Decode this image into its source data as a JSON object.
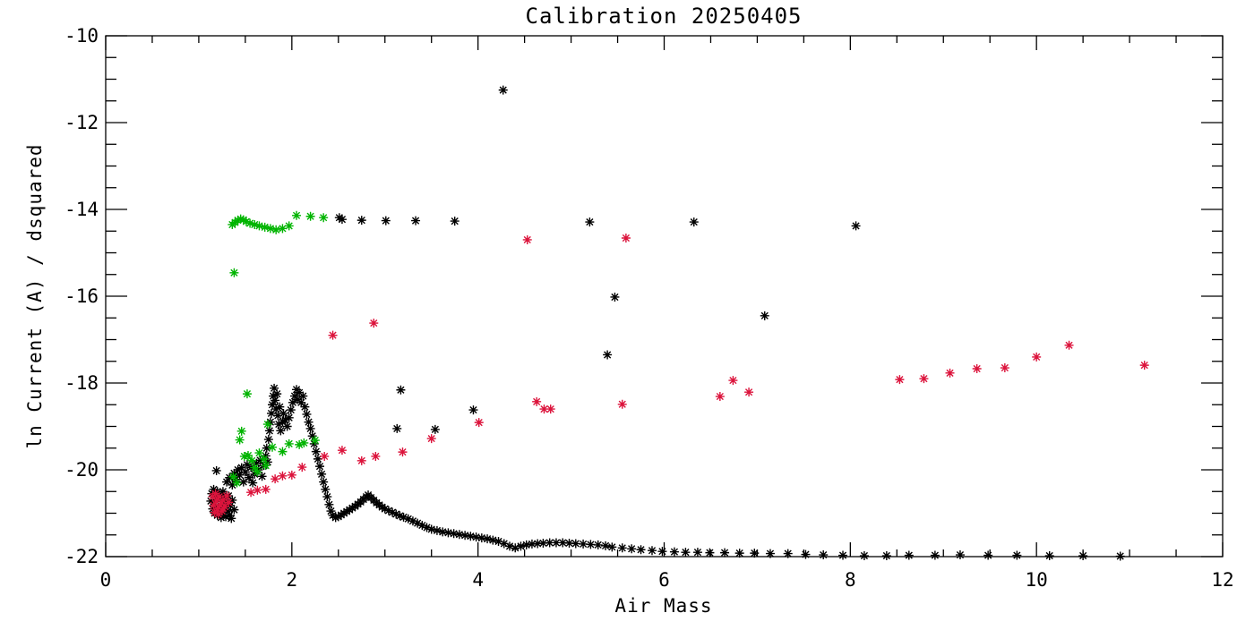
{
  "colors": {
    "background": "#ffffff",
    "axis": "#000000",
    "black_series": "#000000",
    "green_series": "#00b400",
    "red_series": "#dc143c"
  },
  "chart_data": {
    "type": "scatter",
    "title": "Calibration 20250405",
    "xlabel": "Air Mass",
    "ylabel": "ln Current (A) / dsquared",
    "xlim": [
      0,
      12
    ],
    "ylim": [
      -22,
      -10
    ],
    "x_major_ticks": [
      0,
      2,
      4,
      6,
      8,
      10,
      12
    ],
    "x_tick_labels": [
      "0",
      "2",
      "4",
      "6",
      "8",
      "10",
      "12"
    ],
    "x_minor_tick_step": 0.5,
    "y_major_ticks": [
      -22,
      -20,
      -18,
      -16,
      -14,
      -12,
      -10
    ],
    "y_tick_labels": [
      "-22",
      "-20",
      "-18",
      "-16",
      "-14",
      "-12",
      "-10"
    ],
    "y_minor_tick_step": 0.5,
    "grid": false,
    "legend": "none",
    "marker": "asterisk",
    "series": [
      {
        "name": "black-dense-trace",
        "color": "#000000",
        "points": [
          [
            1.13,
            -20.72
          ],
          [
            1.14,
            -20.55
          ],
          [
            1.15,
            -20.9
          ],
          [
            1.16,
            -20.45
          ],
          [
            1.16,
            -20.75
          ],
          [
            1.17,
            -21.0
          ],
          [
            1.18,
            -20.6
          ],
          [
            1.19,
            -20.85
          ],
          [
            1.2,
            -20.5
          ],
          [
            1.2,
            -21.05
          ],
          [
            1.21,
            -20.7
          ],
          [
            1.22,
            -20.92
          ],
          [
            1.23,
            -20.58
          ],
          [
            1.24,
            -21.1
          ],
          [
            1.25,
            -20.78
          ],
          [
            1.26,
            -20.5
          ],
          [
            1.26,
            -21.0
          ],
          [
            1.27,
            -20.65
          ],
          [
            1.28,
            -20.88
          ],
          [
            1.29,
            -21.08
          ],
          [
            1.3,
            -20.72
          ],
          [
            1.31,
            -20.95
          ],
          [
            1.32,
            -20.6
          ],
          [
            1.33,
            -21.05
          ],
          [
            1.34,
            -20.82
          ],
          [
            1.35,
            -21.12
          ],
          [
            1.36,
            -20.7
          ],
          [
            1.38,
            -20.92
          ],
          [
            1.19,
            -20.02
          ],
          [
            1.3,
            -20.28
          ],
          [
            1.33,
            -20.18
          ],
          [
            1.36,
            -20.35
          ],
          [
            1.38,
            -20.08
          ],
          [
            1.4,
            -20.22
          ],
          [
            1.42,
            -20.0
          ],
          [
            1.44,
            -20.12
          ],
          [
            1.46,
            -19.95
          ],
          [
            1.48,
            -20.28
          ],
          [
            1.5,
            -20.05
          ],
          [
            1.52,
            -19.88
          ],
          [
            1.54,
            -20.18
          ],
          [
            1.56,
            -19.95
          ],
          [
            1.58,
            -20.3
          ],
          [
            1.6,
            -20.1
          ],
          [
            1.62,
            -19.85
          ],
          [
            1.64,
            -20.0
          ],
          [
            1.66,
            -19.78
          ],
          [
            1.68,
            -20.15
          ],
          [
            1.7,
            -19.9
          ],
          [
            1.72,
            -19.68
          ],
          [
            1.74,
            -19.82
          ],
          [
            1.73,
            -19.5
          ],
          [
            1.75,
            -19.3
          ],
          [
            1.76,
            -19.1
          ],
          [
            1.77,
            -18.9
          ],
          [
            1.78,
            -18.7
          ],
          [
            1.79,
            -18.5
          ],
          [
            1.8,
            -18.3
          ],
          [
            1.81,
            -18.12
          ],
          [
            1.82,
            -18.4
          ],
          [
            1.83,
            -18.6
          ],
          [
            1.84,
            -18.25
          ],
          [
            1.85,
            -18.75
          ],
          [
            1.86,
            -18.95
          ],
          [
            1.87,
            -18.55
          ],
          [
            1.88,
            -19.1
          ],
          [
            1.9,
            -18.9
          ],
          [
            1.91,
            -18.7
          ],
          [
            1.93,
            -18.85
          ],
          [
            1.95,
            -19.0
          ],
          [
            1.97,
            -18.8
          ],
          [
            1.99,
            -18.62
          ],
          [
            2.01,
            -18.45
          ],
          [
            2.03,
            -18.3
          ],
          [
            2.05,
            -18.15
          ],
          [
            2.06,
            -18.38
          ],
          [
            2.08,
            -18.22
          ],
          [
            2.1,
            -18.45
          ],
          [
            2.12,
            -18.3
          ],
          [
            2.14,
            -18.55
          ],
          [
            2.16,
            -18.72
          ],
          [
            2.18,
            -18.9
          ],
          [
            2.2,
            -19.05
          ],
          [
            2.22,
            -19.22
          ],
          [
            2.24,
            -19.4
          ],
          [
            2.26,
            -19.58
          ],
          [
            2.28,
            -19.75
          ],
          [
            2.3,
            -19.92
          ],
          [
            2.32,
            -20.1
          ],
          [
            2.34,
            -20.28
          ],
          [
            2.36,
            -20.45
          ],
          [
            2.38,
            -20.62
          ],
          [
            2.4,
            -20.8
          ],
          [
            2.42,
            -20.95
          ],
          [
            2.44,
            -21.05
          ],
          [
            2.47,
            -21.1
          ],
          [
            2.5,
            -21.08
          ],
          [
            2.53,
            -21.04
          ],
          [
            2.56,
            -21.0
          ],
          [
            2.59,
            -20.96
          ],
          [
            2.62,
            -20.92
          ],
          [
            2.65,
            -20.88
          ],
          [
            2.68,
            -20.84
          ],
          [
            2.71,
            -20.79
          ],
          [
            2.74,
            -20.74
          ],
          [
            2.77,
            -20.68
          ],
          [
            2.8,
            -20.62
          ],
          [
            2.82,
            -20.58
          ],
          [
            2.85,
            -20.64
          ],
          [
            2.88,
            -20.7
          ],
          [
            2.91,
            -20.76
          ],
          [
            2.94,
            -20.81
          ],
          [
            2.97,
            -20.86
          ],
          [
            3.0,
            -20.9
          ],
          [
            3.04,
            -20.94
          ],
          [
            3.08,
            -20.98
          ],
          [
            3.12,
            -21.02
          ],
          [
            3.16,
            -21.06
          ],
          [
            3.2,
            -21.09
          ],
          [
            3.25,
            -21.13
          ],
          [
            3.3,
            -21.18
          ],
          [
            3.35,
            -21.23
          ],
          [
            3.4,
            -21.28
          ],
          [
            3.45,
            -21.33
          ],
          [
            3.5,
            -21.37
          ],
          [
            3.56,
            -21.4
          ],
          [
            3.62,
            -21.43
          ],
          [
            3.68,
            -21.45
          ],
          [
            3.74,
            -21.47
          ],
          [
            3.8,
            -21.49
          ],
          [
            3.86,
            -21.51
          ],
          [
            3.92,
            -21.53
          ],
          [
            3.98,
            -21.55
          ],
          [
            4.04,
            -21.57
          ],
          [
            4.1,
            -21.59
          ],
          [
            4.16,
            -21.62
          ],
          [
            4.22,
            -21.65
          ],
          [
            4.28,
            -21.7
          ],
          [
            4.34,
            -21.76
          ],
          [
            4.4,
            -21.8
          ],
          [
            4.46,
            -21.76
          ],
          [
            4.52,
            -21.73
          ],
          [
            4.58,
            -21.71
          ],
          [
            4.64,
            -21.7
          ],
          [
            4.7,
            -21.69
          ],
          [
            4.77,
            -21.68
          ],
          [
            4.84,
            -21.68
          ],
          [
            4.91,
            -21.68
          ],
          [
            4.98,
            -21.69
          ],
          [
            5.05,
            -21.7
          ],
          [
            5.13,
            -21.71
          ],
          [
            5.21,
            -21.72
          ],
          [
            5.29,
            -21.73
          ],
          [
            5.37,
            -21.75
          ],
          [
            5.44,
            -21.78
          ],
          [
            5.55,
            -21.8
          ],
          [
            5.65,
            -21.82
          ],
          [
            5.75,
            -21.84
          ],
          [
            5.87,
            -21.86
          ],
          [
            5.98,
            -21.88
          ],
          [
            6.11,
            -21.89
          ],
          [
            6.23,
            -21.9
          ],
          [
            6.36,
            -21.9
          ],
          [
            6.49,
            -21.91
          ],
          [
            6.65,
            -21.91
          ],
          [
            6.81,
            -21.92
          ],
          [
            6.97,
            -21.92
          ],
          [
            7.14,
            -21.93
          ],
          [
            7.33,
            -21.93
          ],
          [
            7.52,
            -21.95
          ],
          [
            7.71,
            -21.96
          ],
          [
            7.92,
            -21.97
          ],
          [
            8.15,
            -21.98
          ],
          [
            8.39,
            -21.98
          ],
          [
            8.63,
            -21.97
          ],
          [
            8.91,
            -21.97
          ],
          [
            9.18,
            -21.96
          ],
          [
            9.48,
            -21.97
          ],
          [
            9.79,
            -21.97
          ],
          [
            10.14,
            -21.98
          ],
          [
            10.5,
            -21.98
          ],
          [
            10.9,
            -21.99
          ]
        ]
      },
      {
        "name": "black-outliers",
        "color": "#000000",
        "points": [
          [
            4.27,
            -11.25
          ],
          [
            2.51,
            -14.19
          ],
          [
            2.54,
            -14.23
          ],
          [
            2.75,
            -14.25
          ],
          [
            3.01,
            -14.26
          ],
          [
            3.33,
            -14.26
          ],
          [
            3.75,
            -14.27
          ],
          [
            5.2,
            -14.29
          ],
          [
            6.32,
            -14.29
          ],
          [
            8.06,
            -14.38
          ],
          [
            5.47,
            -16.02
          ],
          [
            7.08,
            -16.45
          ],
          [
            5.39,
            -17.35
          ],
          [
            3.17,
            -18.16
          ],
          [
            3.95,
            -18.62
          ],
          [
            3.13,
            -19.05
          ],
          [
            3.54,
            -19.07
          ]
        ]
      },
      {
        "name": "green-series",
        "color": "#00b400",
        "points": [
          [
            1.36,
            -14.35
          ],
          [
            1.39,
            -14.3
          ],
          [
            1.42,
            -14.25
          ],
          [
            1.45,
            -14.22
          ],
          [
            1.48,
            -14.24
          ],
          [
            1.51,
            -14.28
          ],
          [
            1.55,
            -14.32
          ],
          [
            1.6,
            -14.35
          ],
          [
            1.65,
            -14.38
          ],
          [
            1.71,
            -14.41
          ],
          [
            1.77,
            -14.44
          ],
          [
            1.83,
            -14.47
          ],
          [
            1.9,
            -14.44
          ],
          [
            1.97,
            -14.38
          ],
          [
            2.05,
            -14.14
          ],
          [
            2.2,
            -14.16
          ],
          [
            2.34,
            -14.19
          ],
          [
            1.38,
            -15.46
          ],
          [
            1.52,
            -18.25
          ],
          [
            1.74,
            -18.95
          ],
          [
            1.46,
            -19.11
          ],
          [
            1.44,
            -19.31
          ],
          [
            1.49,
            -19.69
          ],
          [
            1.53,
            -19.67
          ],
          [
            1.57,
            -19.79
          ],
          [
            1.65,
            -19.61
          ],
          [
            1.7,
            -19.75
          ],
          [
            1.72,
            -19.9
          ],
          [
            1.79,
            -19.48
          ],
          [
            1.9,
            -19.58
          ],
          [
            1.97,
            -19.4
          ],
          [
            2.08,
            -19.42
          ],
          [
            2.13,
            -19.38
          ],
          [
            2.25,
            -19.32
          ],
          [
            1.6,
            -19.95
          ],
          [
            1.63,
            -20.05
          ],
          [
            1.37,
            -20.16
          ],
          [
            1.41,
            -20.3
          ]
        ]
      },
      {
        "name": "red-series",
        "color": "#dc143c",
        "points": [
          [
            1.15,
            -20.62
          ],
          [
            1.16,
            -20.82
          ],
          [
            1.17,
            -20.98
          ],
          [
            1.18,
            -20.55
          ],
          [
            1.19,
            -20.72
          ],
          [
            1.2,
            -20.9
          ],
          [
            1.21,
            -21.02
          ],
          [
            1.22,
            -20.62
          ],
          [
            1.23,
            -20.8
          ],
          [
            1.25,
            -20.95
          ],
          [
            1.26,
            -20.7
          ],
          [
            1.28,
            -20.85
          ],
          [
            1.3,
            -20.6
          ],
          [
            1.32,
            -20.75
          ],
          [
            1.56,
            -20.52
          ],
          [
            1.63,
            -20.47
          ],
          [
            1.72,
            -20.45
          ],
          [
            1.82,
            -20.21
          ],
          [
            1.9,
            -20.14
          ],
          [
            2.0,
            -20.12
          ],
          [
            2.11,
            -19.94
          ],
          [
            2.35,
            -19.69
          ],
          [
            2.54,
            -19.55
          ],
          [
            2.75,
            -19.79
          ],
          [
            2.9,
            -19.69
          ],
          [
            3.19,
            -19.59
          ],
          [
            2.44,
            -16.9
          ],
          [
            2.88,
            -16.62
          ],
          [
            3.5,
            -19.28
          ],
          [
            4.01,
            -18.91
          ],
          [
            4.63,
            -18.43
          ],
          [
            4.71,
            -18.6
          ],
          [
            4.78,
            -18.6
          ],
          [
            5.55,
            -18.49
          ],
          [
            4.53,
            -14.7
          ],
          [
            5.59,
            -14.66
          ],
          [
            6.6,
            -18.31
          ],
          [
            6.74,
            -17.94
          ],
          [
            6.91,
            -18.21
          ],
          [
            8.53,
            -17.92
          ],
          [
            8.79,
            -17.9
          ],
          [
            9.07,
            -17.77
          ],
          [
            9.36,
            -17.67
          ],
          [
            9.66,
            -17.65
          ],
          [
            10.0,
            -17.4
          ],
          [
            10.35,
            -17.13
          ],
          [
            11.16,
            -17.59
          ]
        ]
      }
    ]
  }
}
